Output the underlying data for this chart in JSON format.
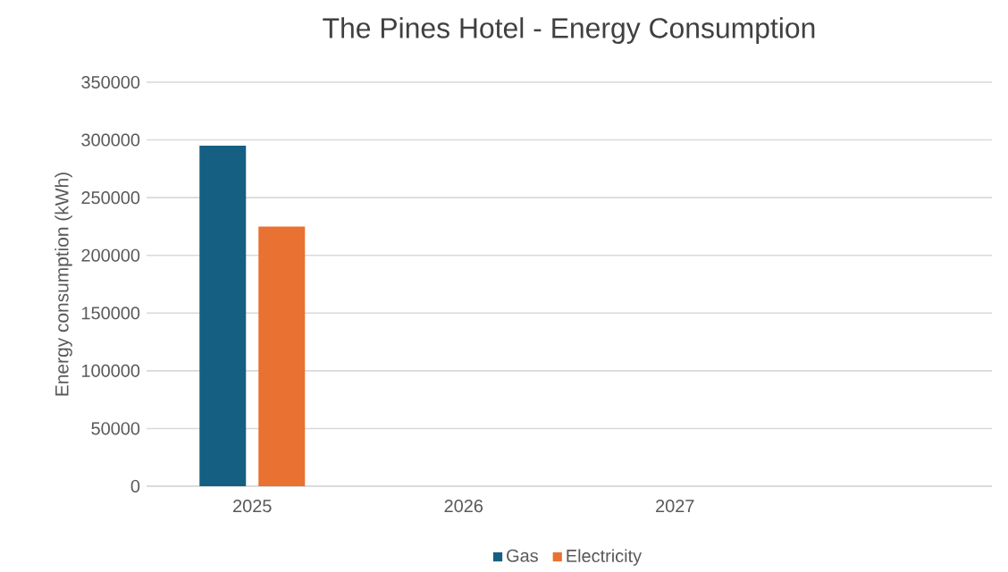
{
  "chart_data": {
    "type": "bar",
    "title": "The Pines Hotel - Energy Consumption",
    "ylabel": "Energy consumption (kWh)",
    "categories": [
      "2025",
      "2026",
      "2027",
      null
    ],
    "series": [
      {
        "name": "Gas",
        "color": "#156082",
        "values": [
          295000,
          null,
          null,
          null
        ]
      },
      {
        "name": "Electricity",
        "color": "#e97132",
        "values": [
          225000,
          null,
          null,
          null
        ]
      }
    ],
    "ylim": [
      0,
      350000
    ],
    "yticks": [
      0,
      50000,
      100000,
      150000,
      200000,
      250000,
      300000,
      350000
    ],
    "grid": "y",
    "legend": "bottom"
  }
}
